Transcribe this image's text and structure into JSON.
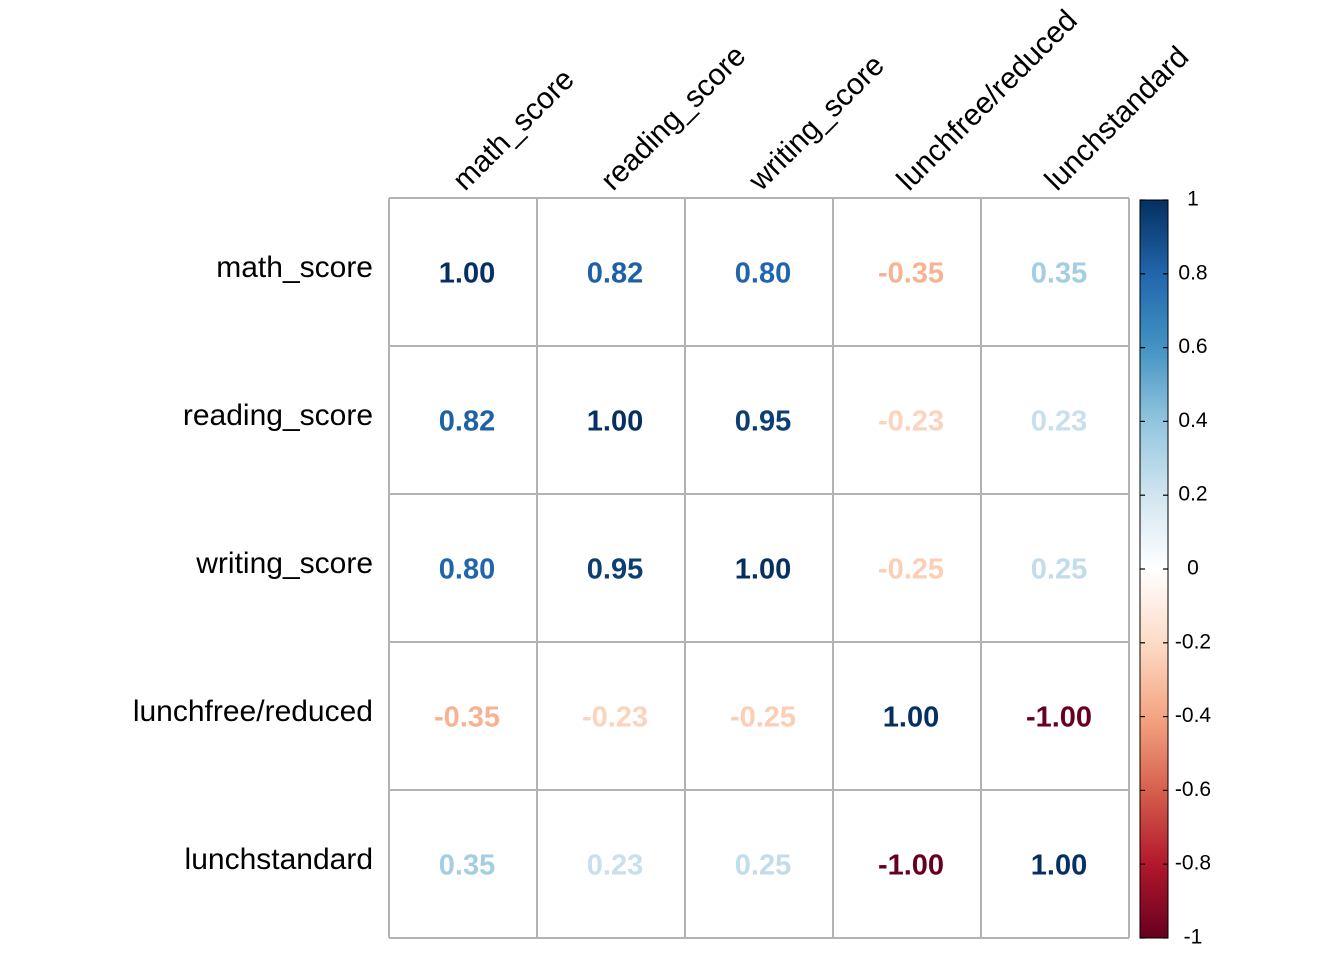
{
  "chart_data": {
    "type": "heatmap",
    "title": "",
    "variables": [
      "math_score",
      "reading_score",
      "writing_score",
      "lunchfree/reduced",
      "lunchstandard"
    ],
    "matrix": [
      [
        1.0,
        0.82,
        0.8,
        -0.35,
        0.35
      ],
      [
        0.82,
        1.0,
        0.95,
        -0.23,
        0.23
      ],
      [
        0.8,
        0.95,
        1.0,
        -0.25,
        0.25
      ],
      [
        -0.35,
        -0.23,
        -0.25,
        1.0,
        -1.0
      ],
      [
        0.35,
        0.23,
        0.25,
        -1.0,
        1.0
      ]
    ],
    "value_format": "2 decimals",
    "colorbar": {
      "range": [
        -1,
        1
      ],
      "ticks": [
        "1",
        "0.8",
        "0.6",
        "0.4",
        "0.2",
        "0",
        "-0.2",
        "-0.4",
        "-0.6",
        "-0.8",
        "-1"
      ],
      "placement": "right",
      "colors": [
        "#67001F",
        "#B2182B",
        "#D6604D",
        "#F4A582",
        "#FDDBC7",
        "#FFFFFF",
        "#D1E5F0",
        "#92C5DE",
        "#4393C3",
        "#2166AC",
        "#053061"
      ]
    },
    "grid": true,
    "column_label_rotation": "45 degrees"
  }
}
